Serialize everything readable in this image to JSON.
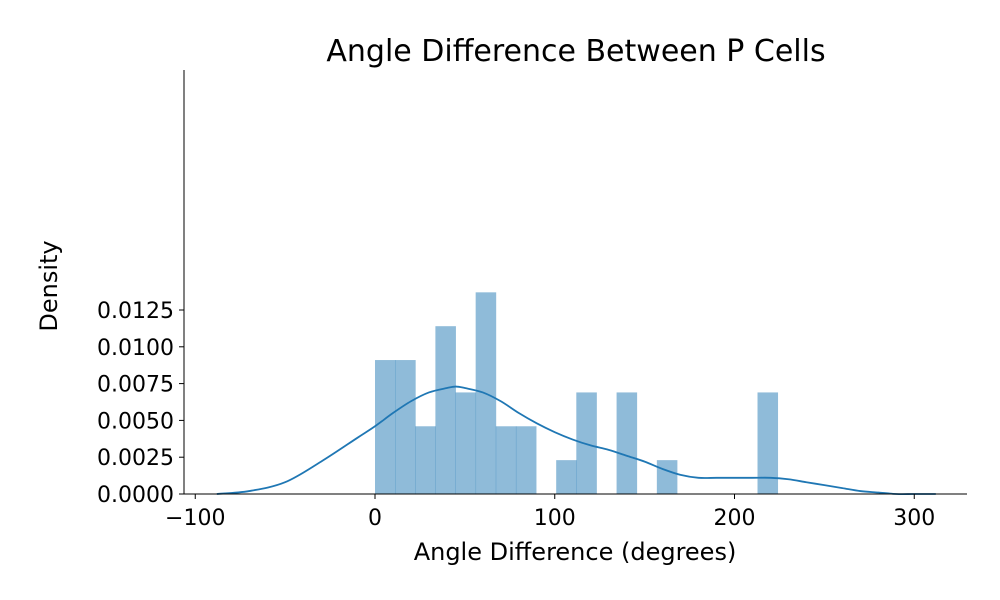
{
  "chart_data": {
    "type": "bar",
    "title": "Angle Difference Between P Cells",
    "xlabel": "Angle Difference (degrees)",
    "ylabel": "Density",
    "xlim": [
      -110,
      330
    ],
    "ylim": [
      0,
      0.0138
    ],
    "x_ticks": [
      -100,
      0,
      100,
      200,
      300
    ],
    "x_tick_labels": [
      "−100",
      "0",
      "100",
      "200",
      "300"
    ],
    "y_ticks": [
      0,
      0.0025,
      0.005,
      0.0075,
      0.01,
      0.0125
    ],
    "y_tick_labels": [
      "0.0000",
      "0.0025",
      "0.0050",
      "0.0075",
      "0.0100",
      "0.0125"
    ],
    "bin_width": 11.2,
    "histogram": {
      "bin_starts": [
        0,
        11.2,
        22.4,
        33.6,
        44.8,
        56.0,
        67.2,
        78.4,
        100.8,
        112.0,
        134.4,
        156.8,
        212.8
      ],
      "values": [
        0.0091,
        0.0091,
        0.0046,
        0.0114,
        0.0069,
        0.0137,
        0.0046,
        0.0046,
        0.0023,
        0.0069,
        0.0069,
        0.0023,
        0.0069
      ]
    },
    "kde": {
      "x": [
        -88,
        -70,
        -50,
        -30,
        -10,
        0,
        10,
        20,
        30,
        40,
        45,
        50,
        60,
        70,
        80,
        90,
        100,
        110,
        120,
        130,
        140,
        150,
        160,
        170,
        180,
        190,
        200,
        210,
        220,
        230,
        240,
        250,
        260,
        270,
        280,
        290,
        300,
        312
      ],
      "y": [
        0.0,
        0.0002,
        0.0008,
        0.0022,
        0.0038,
        0.0046,
        0.0055,
        0.0063,
        0.0069,
        0.0072,
        0.0073,
        0.0072,
        0.0069,
        0.0063,
        0.0055,
        0.0048,
        0.0042,
        0.0037,
        0.0033,
        0.003,
        0.0026,
        0.0022,
        0.0017,
        0.0013,
        0.0011,
        0.0011,
        0.0011,
        0.0011,
        0.0011,
        0.001,
        0.0008,
        0.0006,
        0.0004,
        0.0002,
        0.0001,
        0.0,
        0.0,
        0.0
      ]
    },
    "grid": false,
    "colors": {
      "bars": "#1f77b4",
      "bar_opacity": 0.5,
      "kde": "#1f77b4"
    }
  }
}
